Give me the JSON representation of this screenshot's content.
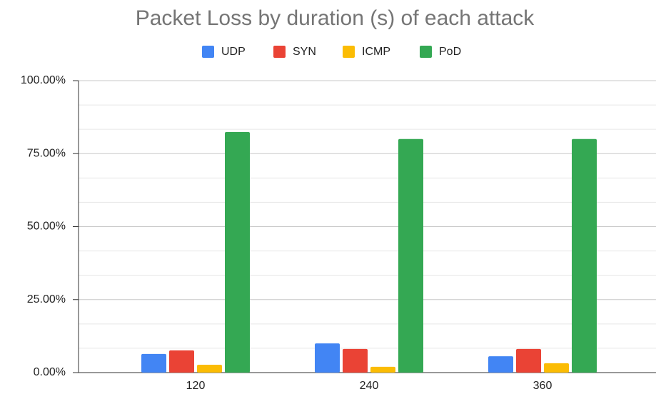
{
  "chart_data": {
    "type": "bar",
    "title": "Packet Loss by duration (s) of each attack",
    "categories": [
      "120",
      "240",
      "360"
    ],
    "series": [
      {
        "name": "UDP",
        "color": "#4285f4",
        "values": [
          6.4,
          10.0,
          5.6
        ]
      },
      {
        "name": "SYN",
        "color": "#ea4335",
        "values": [
          7.6,
          8.1,
          8.1
        ]
      },
      {
        "name": "ICMP",
        "color": "#fbbc04",
        "values": [
          2.7,
          2.0,
          3.2
        ]
      },
      {
        "name": "PoD",
        "color": "#34a853",
        "values": [
          82.4,
          80.0,
          80.0
        ]
      }
    ],
    "ylim": [
      0,
      100
    ],
    "yticks": [
      {
        "value": 0,
        "label": "0.00%"
      },
      {
        "value": 25,
        "label": "25.00%"
      },
      {
        "value": 50,
        "label": "50.00%"
      },
      {
        "value": 75,
        "label": "75.00%"
      },
      {
        "value": 100,
        "label": "100.00%"
      }
    ],
    "grid": true,
    "legend": "top"
  }
}
